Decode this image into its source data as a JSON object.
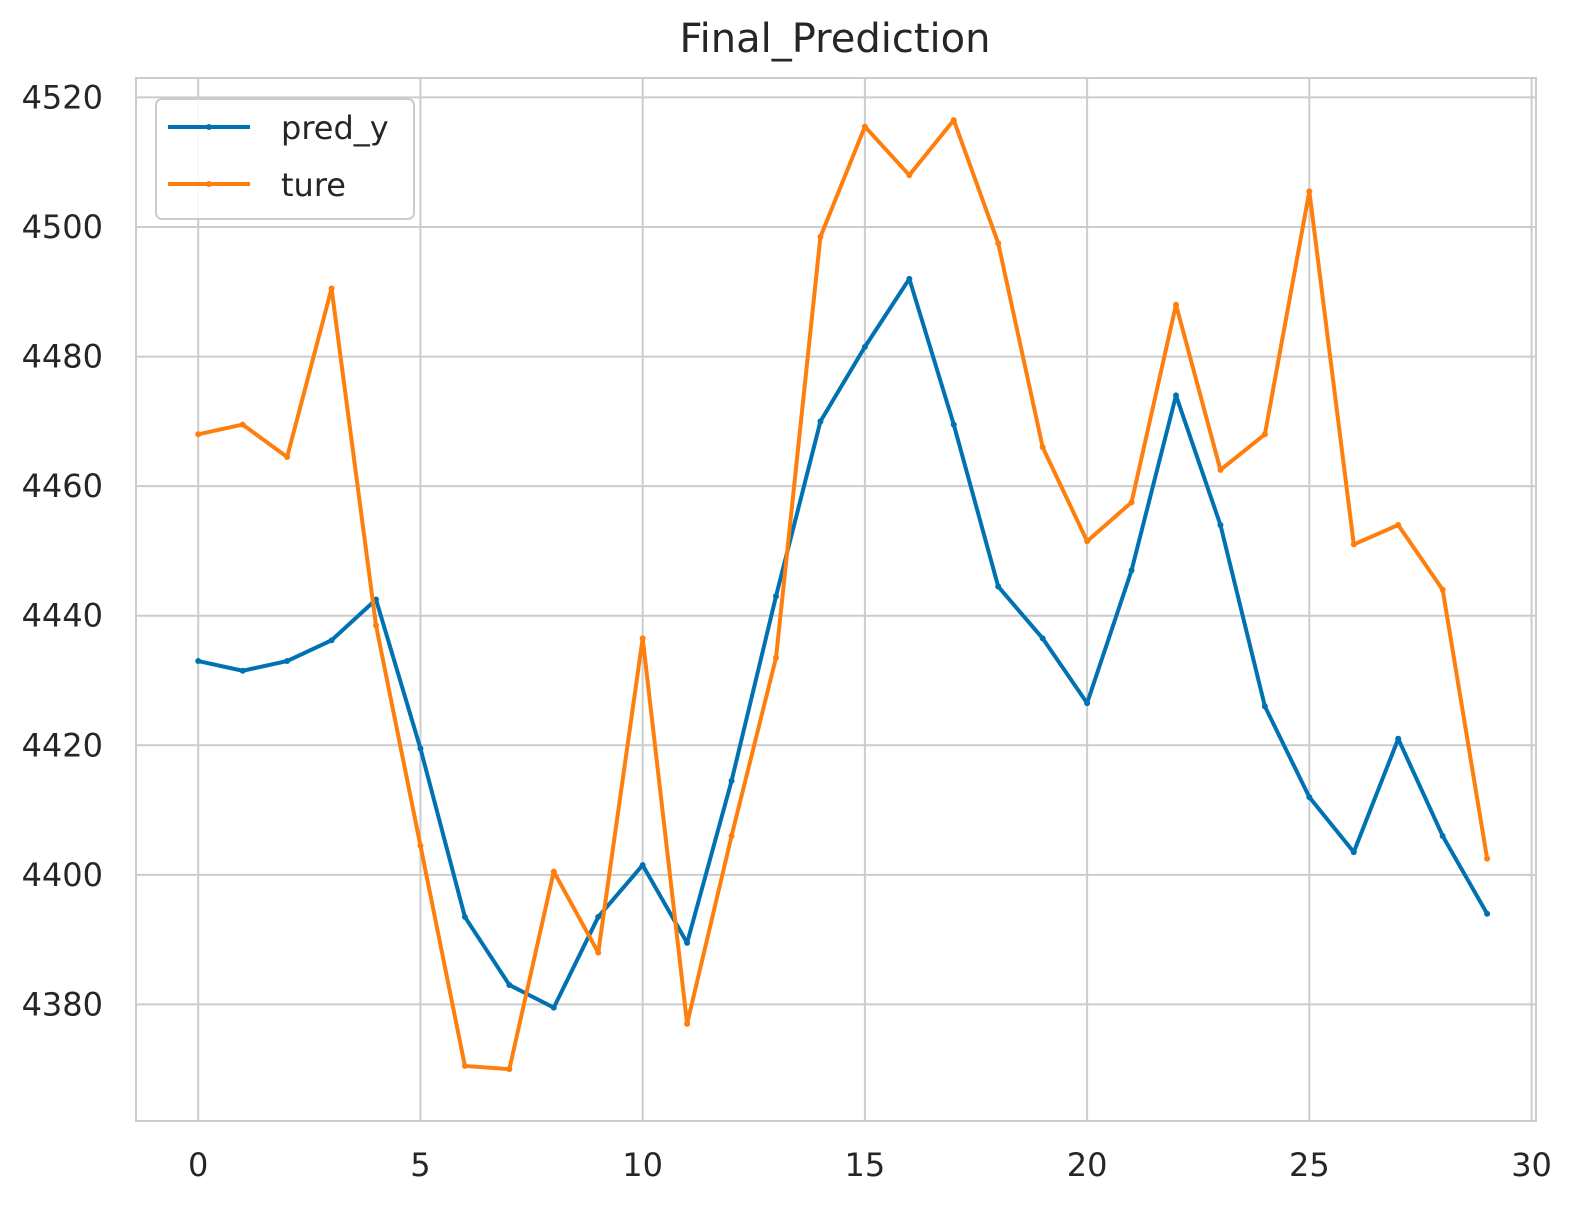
{
  "chart_data": {
    "type": "line",
    "title": "Final_Prediction",
    "xlabel": "",
    "ylabel": "",
    "xlim": [
      -1.4,
      30.1
    ],
    "ylim": [
      4362,
      4523
    ],
    "xticks": [
      0,
      5,
      10,
      15,
      20,
      25,
      30
    ],
    "yticks": [
      4380,
      4400,
      4420,
      4440,
      4460,
      4480,
      4500,
      4520
    ],
    "grid": true,
    "legend_position": "upper-left",
    "x": [
      0,
      1,
      2,
      3,
      4,
      5,
      6,
      7,
      8,
      9,
      10,
      11,
      12,
      13,
      14,
      15,
      16,
      17,
      18,
      19,
      20,
      21,
      22,
      23,
      24,
      25,
      26,
      27,
      28,
      29
    ],
    "series": [
      {
        "name": "pred_y",
        "color": "#0072b2",
        "values": [
          4433,
          4431.5,
          4433,
          4436.2,
          4442.5,
          4419.5,
          4393.5,
          4383,
          4379.5,
          4393.5,
          4401.5,
          4389.5,
          4414.5,
          4443,
          4470,
          4481.5,
          4492,
          4469.5,
          4444.5,
          4436.5,
          4426.5,
          4447,
          4474,
          4454,
          4426,
          4412,
          4403.5,
          4421,
          4406,
          4394
        ]
      },
      {
        "name": "ture",
        "color": "#ff7f0e",
        "values": [
          4468,
          4469.5,
          4464.5,
          4490.5,
          4438.5,
          4404.5,
          4370.5,
          4370,
          4400.5,
          4388,
          4436.5,
          4377,
          4406,
          4433.5,
          4498.5,
          4515.5,
          4508,
          4516.5,
          4497.5,
          4466,
          4451.5,
          4457.5,
          4488,
          4462.5,
          4468,
          4505.5,
          4451,
          4454,
          4444,
          4402.5
        ]
      }
    ]
  }
}
